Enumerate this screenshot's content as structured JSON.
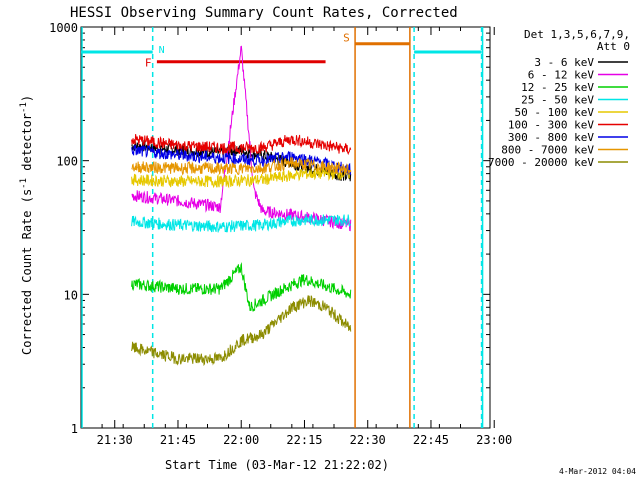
{
  "chart_data": {
    "type": "line",
    "title": "HESSI Observing Summary Count Rates, Corrected",
    "xlabel": "Start Time (03-Mar-12 21:22:02)",
    "ylabel_main": "Corrected Count Rate (s",
    "ylabel_sup1": "-1",
    "ylabel_mid": " detector",
    "ylabel_sup2": "-1",
    "ylabel_end": ")",
    "yscale": "log",
    "ylim": [
      1,
      1000
    ],
    "xlim_minutes": [
      21.45,
      22.98
    ],
    "x_ticks": [
      "21:30",
      "21:45",
      "22:00",
      "22:15",
      "22:30",
      "22:45",
      "23:00"
    ],
    "y_ticks": [
      "1",
      "10",
      "100",
      "1000"
    ],
    "footer": "4-Mar-2012 04:04",
    "legend": {
      "header1": "Det 1,3,5,6,7,9,",
      "header2": "Att 0",
      "entries": [
        {
          "label": "3 - 6 keV",
          "color": "#000000"
        },
        {
          "label": "6 - 12 keV",
          "color": "#e600e6"
        },
        {
          "label": "12 - 25 keV",
          "color": "#00d000"
        },
        {
          "label": "25 - 50 keV",
          "color": "#00e6e6"
        },
        {
          "label": "50 - 100 keV",
          "color": "#e6c800"
        },
        {
          "label": "100 - 300 keV",
          "color": "#e60000"
        },
        {
          "label": "300 - 800 keV",
          "color": "#0000e6"
        },
        {
          "label": "800 - 7000 keV",
          "color": "#e69600"
        },
        {
          "label": "7000 - 20000 keV",
          "color": "#8c8c00"
        }
      ]
    },
    "flags": [
      {
        "label": "F",
        "color": "#e00000",
        "start": "21:40",
        "end": "22:20",
        "level": 550
      },
      {
        "label": "N",
        "color": "#00e6e6",
        "start": "21:22",
        "end": "21:39",
        "level": 650
      },
      {
        "label": "N",
        "color": "#00e6e6",
        "start": "22:41",
        "end": "22:57",
        "level": 650
      },
      {
        "label": "S",
        "color": "#e07000",
        "start": "22:27",
        "end": "22:40",
        "level": 750
      }
    ],
    "vertical_lines": [
      {
        "time": "21:39",
        "color": "#00e6e6",
        "style": "dashed"
      },
      {
        "time": "22:27",
        "color": "#e07000",
        "style": "solid"
      },
      {
        "time": "22:40",
        "color": "#e07000",
        "style": "solid"
      },
      {
        "time": "22:41",
        "color": "#00e6e6",
        "style": "dashed"
      },
      {
        "time": "22:57",
        "color": "#00e6e6",
        "style": "dashed"
      }
    ],
    "series_levels": [
      {
        "name": "3 - 6 keV",
        "color": "#000000",
        "points": [
          [
            "21:34",
            130
          ],
          [
            "21:45",
            120
          ],
          [
            "21:55",
            115
          ],
          [
            "21:59",
            120
          ],
          [
            "22:05",
            110
          ],
          [
            "22:15",
            90
          ],
          [
            "22:26",
            75
          ]
        ]
      },
      {
        "name": "6 - 12 keV",
        "color": "#e600e6",
        "points": [
          [
            "21:34",
            55
          ],
          [
            "21:45",
            50
          ],
          [
            "21:55",
            45
          ],
          [
            "22:00",
            700
          ],
          [
            "22:03",
            60
          ],
          [
            "22:05",
            42
          ],
          [
            "22:15",
            38
          ],
          [
            "22:26",
            33
          ]
        ]
      },
      {
        "name": "12 - 25 keV",
        "color": "#00d000",
        "points": [
          [
            "21:34",
            12
          ],
          [
            "21:45",
            11
          ],
          [
            "21:55",
            11
          ],
          [
            "22:00",
            16
          ],
          [
            "22:02",
            8
          ],
          [
            "22:05",
            9
          ],
          [
            "22:10",
            11
          ],
          [
            "22:15",
            13
          ],
          [
            "22:26",
            10
          ]
        ]
      },
      {
        "name": "25 - 50 keV",
        "color": "#00e6e6",
        "points": [
          [
            "21:34",
            35
          ],
          [
            "21:45",
            33
          ],
          [
            "21:55",
            32
          ],
          [
            "22:05",
            33
          ],
          [
            "22:10",
            35
          ],
          [
            "22:15",
            36
          ],
          [
            "22:26",
            36
          ]
        ]
      },
      {
        "name": "50 - 100 keV",
        "color": "#e6c800",
        "points": [
          [
            "21:34",
            72
          ],
          [
            "21:45",
            70
          ],
          [
            "21:55",
            70
          ],
          [
            "22:05",
            72
          ],
          [
            "22:15",
            80
          ],
          [
            "22:26",
            80
          ]
        ]
      },
      {
        "name": "100 - 300 keV",
        "color": "#e60000",
        "points": [
          [
            "21:34",
            145
          ],
          [
            "21:45",
            130
          ],
          [
            "21:55",
            125
          ],
          [
            "22:05",
            125
          ],
          [
            "22:12",
            145
          ],
          [
            "22:20",
            130
          ],
          [
            "22:26",
            120
          ]
        ]
      },
      {
        "name": "300 - 800 keV",
        "color": "#0000e6",
        "points": [
          [
            "21:34",
            120
          ],
          [
            "21:45",
            110
          ],
          [
            "21:55",
            105
          ],
          [
            "22:05",
            100
          ],
          [
            "22:12",
            108
          ],
          [
            "22:20",
            95
          ],
          [
            "22:26",
            85
          ]
        ]
      },
      {
        "name": "800 - 7000 keV",
        "color": "#e69600",
        "points": [
          [
            "21:34",
            90
          ],
          [
            "21:45",
            88
          ],
          [
            "21:55",
            87
          ],
          [
            "22:05",
            88
          ],
          [
            "22:12",
            96
          ],
          [
            "22:20",
            90
          ],
          [
            "22:26",
            85
          ]
        ]
      },
      {
        "name": "7000 - 20000 keV",
        "color": "#8c8c00",
        "points": [
          [
            "21:34",
            4
          ],
          [
            "21:45",
            3.3
          ],
          [
            "21:55",
            3.3
          ],
          [
            "22:00",
            4.5
          ],
          [
            "22:05",
            5
          ],
          [
            "22:12",
            8
          ],
          [
            "22:16",
            9
          ],
          [
            "22:20",
            8
          ],
          [
            "22:26",
            5.5
          ]
        ]
      }
    ],
    "grid": false,
    "legend_position": "right"
  }
}
